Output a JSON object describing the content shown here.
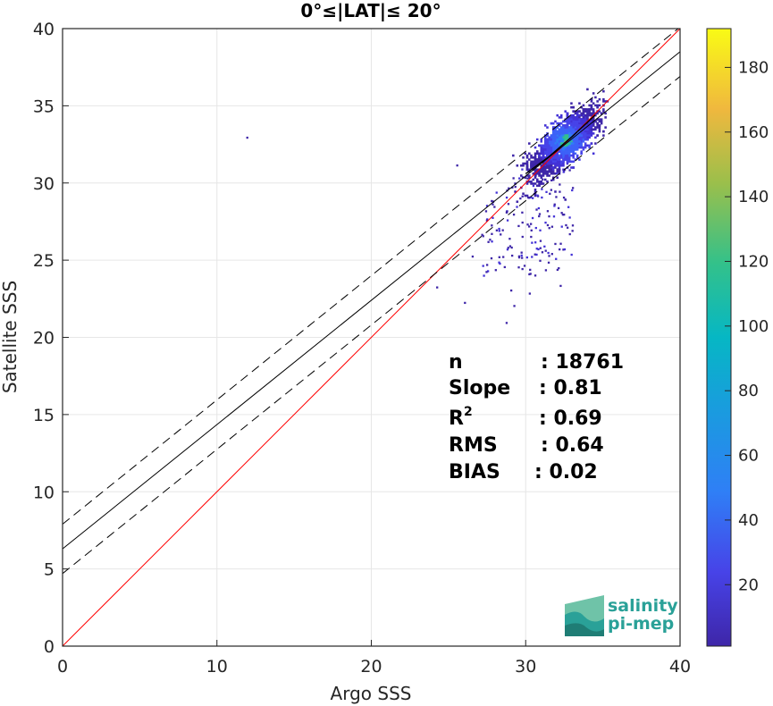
{
  "chart_data": {
    "type": "heatmap",
    "title": "0°≤|LAT|≤ 20°",
    "xlabel": "Argo SSS",
    "ylabel": "Satellite SSS",
    "xlim": [
      0,
      40
    ],
    "ylim": [
      0,
      40
    ],
    "xticks": [
      "0",
      "10",
      "20",
      "30",
      "40"
    ],
    "yticks": [
      "0",
      "5",
      "10",
      "15",
      "20",
      "25",
      "30",
      "35",
      "40"
    ],
    "grid": true,
    "colorbar": {
      "colormap": "parula",
      "range": [
        1,
        192
      ],
      "ticks": [
        "20",
        "40",
        "60",
        "80",
        "100",
        "120",
        "140",
        "160",
        "180"
      ]
    },
    "lines": [
      {
        "name": "1:1 line",
        "color": "#ff0000",
        "style": "solid",
        "points": [
          [
            0,
            0
          ],
          [
            40,
            40
          ]
        ]
      },
      {
        "name": "fit",
        "color": "#000000",
        "style": "solid",
        "points": [
          [
            0,
            6.3
          ],
          [
            40,
            38.5
          ]
        ]
      },
      {
        "name": "fit + sigma",
        "color": "#000000",
        "style": "dashed",
        "points": [
          [
            0,
            7.9
          ],
          [
            40,
            40.1
          ]
        ]
      },
      {
        "name": "fit - sigma",
        "color": "#000000",
        "style": "dashed",
        "points": [
          [
            0,
            4.7
          ],
          [
            40,
            36.9
          ]
        ]
      },
      {
        "name": "binned mean",
        "color": "#000000",
        "style": "solid",
        "points": [
          [
            30.0,
            30.6
          ],
          [
            31.5,
            31.7
          ],
          [
            33.0,
            33.0
          ],
          [
            34.5,
            34.4
          ]
        ]
      }
    ],
    "density": {
      "core": {
        "x": 32.5,
        "y": 32.7,
        "peak": 192
      },
      "outliers": [
        {
          "x": 11.9,
          "y": 33.0
        },
        {
          "x": 25.5,
          "y": 31.2
        },
        {
          "x": 24.2,
          "y": 23.3
        },
        {
          "x": 26.0,
          "y": 22.3
        },
        {
          "x": 28.7,
          "y": 21.0
        },
        {
          "x": 29.2,
          "y": 22.1
        },
        {
          "x": 30.2,
          "y": 22.9
        },
        {
          "x": 32.2,
          "y": 23.4
        },
        {
          "x": 26.5,
          "y": 25.3
        },
        {
          "x": 27.4,
          "y": 24.3
        },
        {
          "x": 29.0,
          "y": 23.1
        }
      ]
    },
    "stats": [
      {
        "label": "n",
        "value": ": 18761"
      },
      {
        "label": "Slope",
        "value": ": 0.81"
      },
      {
        "label": "R",
        "sup": "2",
        "value": ": 0.69"
      },
      {
        "label": "RMS",
        "value": ": 0.64"
      },
      {
        "label": "BIAS",
        "value": ": 0.02"
      }
    ]
  },
  "logo": {
    "line1": "salinity",
    "line2": "pi-mep"
  }
}
